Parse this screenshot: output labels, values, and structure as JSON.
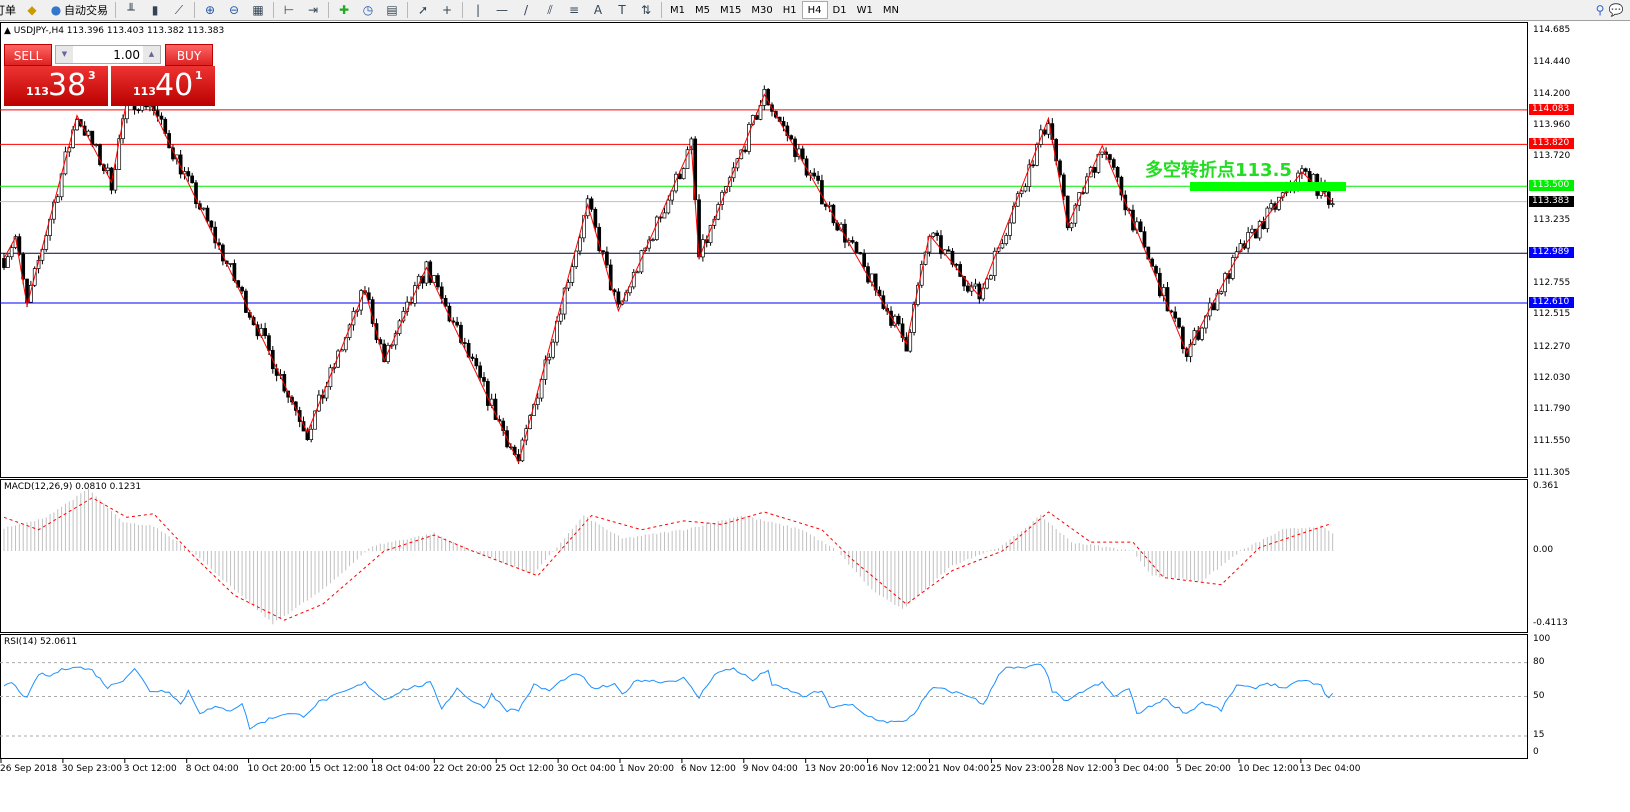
{
  "toolbar": {
    "items": [
      {
        "label": "订单",
        "icon": "new-order-icon"
      },
      {
        "label": "",
        "icon": "market-watch-icon"
      },
      {
        "label": "自动交易",
        "icon": "auto-trading-icon"
      }
    ],
    "tools": [
      "bar-chart-icon",
      "candlestick-icon",
      "line-chart-icon",
      "zoom-in-icon",
      "zoom-out-icon",
      "tile-windows-icon",
      "chart-shift-icon",
      "autoscroll-icon",
      "indicators-icon",
      "periods-icon",
      "templates-icon",
      "cursor-icon",
      "crosshair-icon",
      "vertical-line-icon",
      "horizontal-line-icon",
      "trendline-icon",
      "equidistant-channel-icon",
      "fibonacci-icon",
      "text-icon",
      "text-label-icon",
      "arrows-icon"
    ],
    "timeframes": [
      "M1",
      "M5",
      "M15",
      "M30",
      "H1",
      "H4",
      "D1",
      "W1",
      "MN"
    ],
    "active_timeframe": "H4"
  },
  "chart": {
    "header": "USDJPY-,H4  113.396 113.403 113.382 113.383",
    "annotation": "多空转折点113.5",
    "trade_panel": {
      "sell": "SELL",
      "buy": "BUY",
      "lots": "1.00",
      "sell_big": "113",
      "sell_main": "38",
      "sell_sup": "3",
      "buy_big": "113",
      "buy_main": "40",
      "buy_sup": "1"
    },
    "price_axis": [
      "114.685",
      "114.440",
      "114.200",
      "113.960",
      "113.720",
      "113.235",
      "112.755",
      "112.515",
      "112.270",
      "112.030",
      "111.790",
      "111.550",
      "111.305"
    ],
    "levels": [
      {
        "price": 114.083,
        "label": "114.083",
        "color": "#ff0000"
      },
      {
        "price": 113.82,
        "label": "113.820",
        "color": "#ff0000"
      },
      {
        "price": 113.5,
        "label": "113.500",
        "color": "#00ee00"
      },
      {
        "price": 113.383,
        "label": "113.383",
        "color": "#000000",
        "line": "#c0c0c0"
      },
      {
        "price": 112.989,
        "label": "112.989",
        "color": "#0000ff",
        "line": "#000040"
      },
      {
        "price": 112.61,
        "label": "112.610",
        "color": "#0000ff"
      }
    ],
    "time_axis": [
      "26 Sep 2018",
      "30 Sep 23:00",
      "3 Oct 12:00",
      "8 Oct 04:00",
      "10 Oct 20:00",
      "15 Oct 12:00",
      "18 Oct 04:00",
      "22 Oct 20:00",
      "25 Oct 12:00",
      "30 Oct 04:00",
      "1 Nov 20:00",
      "6 Nov 12:00",
      "9 Nov 04:00",
      "13 Nov 20:00",
      "16 Nov 12:00",
      "21 Nov 04:00",
      "25 Nov 23:00",
      "28 Nov 12:00",
      "3 Dec 04:00",
      "5 Dec 20:00",
      "10 Dec 12:00",
      "13 Dec 04:00"
    ]
  },
  "macd": {
    "label": "MACD(12,26,9) 0.0810 0.1231",
    "axis": [
      "0.361",
      "0.00",
      "-0.4113"
    ]
  },
  "rsi": {
    "label": "RSI(14) 52.0611",
    "axis": [
      "100",
      "80",
      "50",
      "15",
      "0"
    ]
  },
  "chart_data": {
    "type": "candlestick",
    "symbol": "USDJPY",
    "timeframe": "H4",
    "bars": 347,
    "ylim": [
      111.305,
      114.685
    ],
    "zigzag": [
      [
        0,
        112.95
      ],
      [
        3,
        113.11
      ],
      [
        6,
        112.59
      ],
      [
        19,
        114.04
      ],
      [
        28,
        113.53
      ],
      [
        32,
        114.16
      ],
      [
        38,
        114.14
      ],
      [
        79,
        111.62
      ],
      [
        94,
        112.71
      ],
      [
        99,
        112.17
      ],
      [
        110,
        112.88
      ],
      [
        134,
        111.39
      ],
      [
        152,
        113.36
      ],
      [
        160,
        112.55
      ],
      [
        179,
        113.81
      ],
      [
        181,
        112.95
      ],
      [
        198,
        114.2
      ],
      [
        235,
        112.3
      ],
      [
        241,
        113.13
      ],
      [
        254,
        112.66
      ],
      [
        272,
        114.02
      ],
      [
        277,
        113.2
      ],
      [
        286,
        113.81
      ],
      [
        308,
        112.23
      ],
      [
        322,
        113.01
      ],
      [
        338,
        113.61
      ],
      [
        346,
        113.38
      ]
    ],
    "macd_hist": [
      [
        0,
        0.13
      ],
      [
        10,
        0.18
      ],
      [
        22,
        0.35
      ],
      [
        31,
        0.16
      ],
      [
        39,
        0.14
      ],
      [
        49,
        0.0
      ],
      [
        60,
        -0.22
      ],
      [
        70,
        -0.41
      ],
      [
        83,
        -0.22
      ],
      [
        96,
        0.03
      ],
      [
        112,
        0.1
      ],
      [
        122,
        0.0
      ],
      [
        138,
        -0.13
      ],
      [
        151,
        0.2
      ],
      [
        161,
        0.07
      ],
      [
        177,
        0.12
      ],
      [
        192,
        0.2
      ],
      [
        208,
        0.12
      ],
      [
        217,
        0.0
      ],
      [
        226,
        -0.22
      ],
      [
        234,
        -0.33
      ],
      [
        247,
        -0.08
      ],
      [
        260,
        0.03
      ],
      [
        270,
        0.2
      ],
      [
        278,
        0.05
      ],
      [
        294,
        0.0
      ],
      [
        299,
        -0.14
      ],
      [
        312,
        -0.17
      ],
      [
        322,
        0.0
      ],
      [
        333,
        0.12
      ],
      [
        343,
        0.14
      ],
      [
        347,
        0.08
      ]
    ],
    "macd_signal": [
      [
        0,
        0.19
      ],
      [
        9,
        0.12
      ],
      [
        23,
        0.3
      ],
      [
        32,
        0.19
      ],
      [
        39,
        0.21
      ],
      [
        49,
        -0.02
      ],
      [
        60,
        -0.25
      ],
      [
        73,
        -0.39
      ],
      [
        83,
        -0.3
      ],
      [
        99,
        0.0
      ],
      [
        112,
        0.09
      ],
      [
        122,
        0.0
      ],
      [
        139,
        -0.14
      ],
      [
        153,
        0.2
      ],
      [
        166,
        0.12
      ],
      [
        177,
        0.17
      ],
      [
        187,
        0.15
      ],
      [
        198,
        0.22
      ],
      [
        213,
        0.12
      ],
      [
        221,
        -0.05
      ],
      [
        235,
        -0.3
      ],
      [
        247,
        -0.11
      ],
      [
        260,
        0
      ],
      [
        272,
        0.22
      ],
      [
        283,
        0.05
      ],
      [
        294,
        0.05
      ],
      [
        302,
        -0.15
      ],
      [
        317,
        -0.19
      ],
      [
        327,
        0.02
      ],
      [
        345,
        0.15
      ]
    ],
    "macd_ylim": [
      -0.4113,
      0.361
    ],
    "rsi": [
      [
        0,
        60
      ],
      [
        2,
        62
      ],
      [
        6,
        48
      ],
      [
        9,
        70
      ],
      [
        12,
        68
      ],
      [
        14,
        72
      ],
      [
        18,
        77
      ],
      [
        23,
        73
      ],
      [
        27,
        58
      ],
      [
        31,
        65
      ],
      [
        34,
        75
      ],
      [
        38,
        55
      ],
      [
        43,
        55
      ],
      [
        46,
        43
      ],
      [
        48,
        55
      ],
      [
        51,
        36
      ],
      [
        55,
        40
      ],
      [
        59,
        38
      ],
      [
        62,
        44
      ],
      [
        64,
        22
      ],
      [
        69,
        30
      ],
      [
        73,
        35
      ],
      [
        78,
        33
      ],
      [
        82,
        45
      ],
      [
        88,
        53
      ],
      [
        94,
        62
      ],
      [
        99,
        47
      ],
      [
        104,
        56
      ],
      [
        111,
        62
      ],
      [
        114,
        40
      ],
      [
        118,
        57
      ],
      [
        122,
        46
      ],
      [
        125,
        40
      ],
      [
        127,
        52
      ],
      [
        131,
        38
      ],
      [
        134,
        38
      ],
      [
        138,
        60
      ],
      [
        142,
        55
      ],
      [
        146,
        66
      ],
      [
        150,
        70
      ],
      [
        153,
        57
      ],
      [
        159,
        60
      ],
      [
        161,
        52
      ],
      [
        165,
        65
      ],
      [
        172,
        63
      ],
      [
        177,
        66
      ],
      [
        181,
        49
      ],
      [
        185,
        70
      ],
      [
        190,
        75
      ],
      [
        195,
        64
      ],
      [
        199,
        74
      ],
      [
        200,
        60
      ],
      [
        205,
        55
      ],
      [
        208,
        50
      ],
      [
        213,
        55
      ],
      [
        215,
        40
      ],
      [
        217,
        42
      ],
      [
        221,
        42
      ],
      [
        224,
        34
      ],
      [
        229,
        28
      ],
      [
        234,
        27
      ],
      [
        237,
        35
      ],
      [
        239,
        45
      ],
      [
        242,
        58
      ],
      [
        246,
        55
      ],
      [
        252,
        50
      ],
      [
        255,
        42
      ],
      [
        259,
        70
      ],
      [
        261,
        75
      ],
      [
        265,
        75
      ],
      [
        270,
        78
      ],
      [
        272,
        68
      ],
      [
        273,
        55
      ],
      [
        277,
        45
      ],
      [
        281,
        55
      ],
      [
        286,
        62
      ],
      [
        289,
        50
      ],
      [
        293,
        57
      ],
      [
        295,
        35
      ],
      [
        298,
        40
      ],
      [
        302,
        48
      ],
      [
        308,
        35
      ],
      [
        312,
        45
      ],
      [
        317,
        38
      ],
      [
        321,
        60
      ],
      [
        325,
        57
      ],
      [
        329,
        62
      ],
      [
        334,
        57
      ],
      [
        338,
        65
      ],
      [
        343,
        59
      ],
      [
        345,
        48
      ],
      [
        346,
        52
      ]
    ],
    "rsi_levels": [
      80,
      50,
      15
    ],
    "colors": {
      "zigzag": "#ff0000",
      "macd_hist": "#c0c0c0",
      "macd_signal": "#ff0000",
      "rsi": "#1e90ff"
    }
  }
}
